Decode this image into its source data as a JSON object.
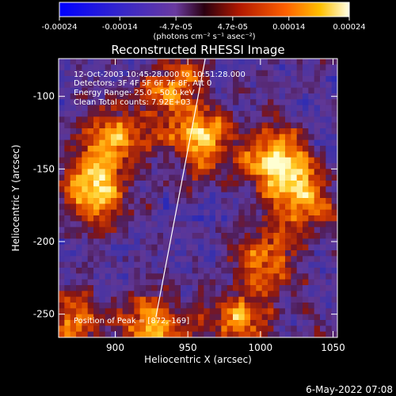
{
  "colorbar": {
    "ticks": [
      "-0.00024",
      "-0.00014",
      "-4.7e-05",
      "4.7e-05",
      "0.00014",
      "0.00024"
    ],
    "tick_values": [
      -0.00024,
      -0.00014,
      -4.7e-05,
      4.7e-05,
      0.00014,
      0.00024
    ],
    "range": [
      -0.00024,
      0.00024
    ],
    "unit_label": "(photons cm⁻² s⁻¹ asec⁻²)"
  },
  "chart_data": {
    "type": "heatmap",
    "title": "Reconstructed RHESSI Image",
    "xlabel": "Heliocentric X (arcsec)",
    "ylabel": "Heliocentric Y (arcsec)",
    "xlim": [
      861,
      1053
    ],
    "ylim": [
      -266,
      -74
    ],
    "xticks": [
      900,
      950,
      1000,
      1050
    ],
    "yticks": [
      -100,
      -150,
      -200,
      -250
    ],
    "limb_line": [
      [
        928,
        -252
      ],
      [
        962,
        -74
      ]
    ],
    "bright_regions": [
      {
        "x": 885,
        "y": -165,
        "level": 1.0
      },
      {
        "x": 900,
        "y": -130,
        "level": 0.85
      },
      {
        "x": 960,
        "y": -130,
        "level": 0.9
      },
      {
        "x": 1010,
        "y": -145,
        "level": 1.0
      },
      {
        "x": 1030,
        "y": -170,
        "level": 0.8
      },
      {
        "x": 1005,
        "y": -210,
        "level": 0.75
      },
      {
        "x": 985,
        "y": -255,
        "level": 0.8
      },
      {
        "x": 925,
        "y": -258,
        "level": 0.85
      },
      {
        "x": 870,
        "y": -255,
        "level": 0.7
      },
      {
        "x": 940,
        "y": -95,
        "level": 0.75
      }
    ],
    "annotations": {
      "time": "12-Oct-2003 10:45:28.000 to 10:51:28.000",
      "detectors": "Detectors: 3F 4F 5F 6F 7F 8F, Att 0",
      "energy": "Energy Range: 25.0 - 50.0 keV",
      "clean": "Clean     Total counts: 7.92E+03",
      "peak": "Position of Peak = [872,-169]"
    },
    "colors": {
      "negative": [
        "#0000ff",
        "#3a2aa0",
        "#55309a"
      ],
      "positive": [
        "#8a1a10",
        "#d84000",
        "#ffb000",
        "#ffffd0"
      ]
    }
  },
  "footer": {
    "date": "6-May-2022 07:08"
  }
}
